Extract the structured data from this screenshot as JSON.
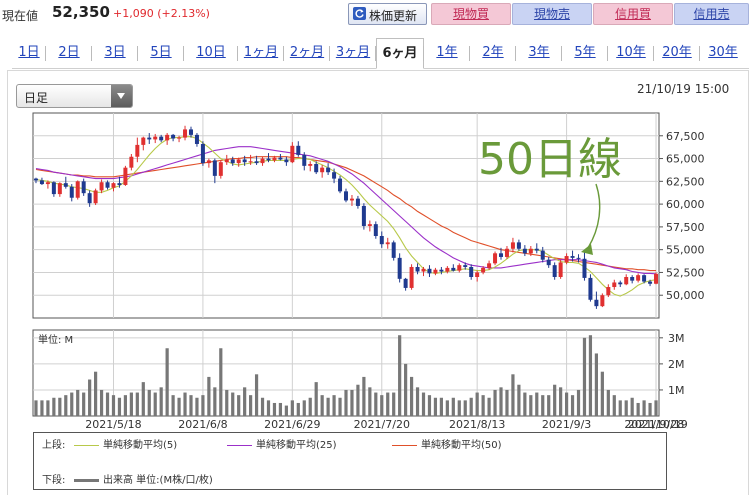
{
  "header": {
    "price_label": "現在値",
    "price_value": "52,350",
    "price_change": "+1,090 (+2.13%)",
    "update_button": "株価更新",
    "buttons": {
      "genbutsu_buy": "現物買",
      "genbutsu_sell": "現物売",
      "shinyo_buy": "信用買",
      "shinyo_sell": "信用売"
    }
  },
  "tabs": [
    "1日",
    "2日",
    "3日",
    "5日",
    "10日",
    "1ヶ月",
    "2ヶ月",
    "3ヶ月",
    "6ヶ月",
    "1年",
    "2年",
    "3年",
    "5年",
    "10年",
    "20年",
    "30年"
  ],
  "active_tab": "6ヶ月",
  "period_select": {
    "value": "日足"
  },
  "timestamp": "21/10/19 15:00",
  "annotation": "50日線",
  "colors": {
    "up": "#e03030",
    "down": "#1f3a8f",
    "ma5": "#b8c94a",
    "ma25": "#9b30c9",
    "ma50": "#e0502a",
    "volume": "#777777",
    "annotation": "#6a9a3a"
  },
  "volume_label": "単位: M",
  "legend": {
    "upper_label": "上段:",
    "ma5": "単純移動平均(5)",
    "ma25": "単純移動平均(25)",
    "ma50": "単純移動平均(50)",
    "lower_label": "下段:",
    "volume": "出来高 単位:(M株/口/枚)"
  },
  "chart_data": {
    "type": "candlestick",
    "x_ticks": [
      "2021/5/18",
      "2021/6/8",
      "2021/6/29",
      "2021/7/20",
      "2021/8/13",
      "2021/9/3",
      "2021/9/28",
      "2021/10/19"
    ],
    "y_ticks": [
      50000,
      52500,
      55000,
      57500,
      60000,
      62500,
      65000,
      67500
    ],
    "y_tick_labels": [
      "50,000",
      "52,500",
      "55,000",
      "57,500",
      "60,000",
      "62,500",
      "65,000",
      "67,500"
    ],
    "ylim": [
      47500,
      70000
    ],
    "volume_ticks": [
      1,
      2,
      3
    ],
    "volume_tick_labels": [
      "1M",
      "2M",
      "3M"
    ],
    "volume_ylim": [
      0,
      3.3
    ],
    "candles": [
      [
        62800,
        62900,
        62300,
        62600,
        0.6
      ],
      [
        62600,
        62900,
        62100,
        62200,
        0.6
      ],
      [
        62200,
        62600,
        61700,
        62400,
        0.6
      ],
      [
        62400,
        62500,
        60800,
        61100,
        0.7
      ],
      [
        61100,
        62400,
        60800,
        62300,
        0.7
      ],
      [
        62300,
        63000,
        61700,
        61900,
        0.8
      ],
      [
        61900,
        62200,
        60300,
        60700,
        0.9
      ],
      [
        60700,
        62600,
        60500,
        62500,
        1.0
      ],
      [
        62500,
        62800,
        60900,
        61200,
        0.9
      ],
      [
        61200,
        61500,
        59700,
        60100,
        1.4
      ],
      [
        60100,
        61700,
        59900,
        61500,
        1.7
      ],
      [
        61500,
        62700,
        61200,
        62400,
        1.0
      ],
      [
        62400,
        62600,
        61600,
        61800,
        0.9
      ],
      [
        61800,
        62400,
        61400,
        62300,
        0.8
      ],
      [
        62300,
        63000,
        61800,
        62100,
        0.7
      ],
      [
        62100,
        64200,
        62000,
        64000,
        0.8
      ],
      [
        64000,
        65500,
        63700,
        65200,
        0.9
      ],
      [
        65200,
        67300,
        64600,
        66500,
        0.9
      ],
      [
        66500,
        67400,
        65900,
        67300,
        1.3
      ],
      [
        67300,
        67800,
        66600,
        67100,
        1.0
      ],
      [
        67100,
        67700,
        66700,
        67400,
        0.9
      ],
      [
        67400,
        67600,
        66800,
        67000,
        1.1
      ],
      [
        67000,
        67800,
        66500,
        67600,
        2.6
      ],
      [
        67600,
        67700,
        66900,
        67200,
        0.8
      ],
      [
        67200,
        67500,
        66800,
        67300,
        0.7
      ],
      [
        67300,
        68600,
        67000,
        68200,
        0.9
      ],
      [
        68200,
        68500,
        67300,
        67600,
        0.8
      ],
      [
        67600,
        67800,
        66300,
        66600,
        0.7
      ],
      [
        66600,
        66900,
        64200,
        64500,
        0.8
      ],
      [
        64500,
        65000,
        64000,
        64800,
        1.5
      ],
      [
        64800,
        65000,
        62300,
        63100,
        1.1
      ],
      [
        63100,
        64800,
        62800,
        64600,
        2.6
      ],
      [
        64600,
        65400,
        64300,
        64900,
        1.0
      ],
      [
        64900,
        65200,
        64200,
        64500,
        0.9
      ],
      [
        64500,
        65100,
        64100,
        64900,
        0.8
      ],
      [
        64900,
        65300,
        64200,
        64600,
        1.1
      ],
      [
        64600,
        65400,
        64300,
        64700,
        0.8
      ],
      [
        64700,
        65300,
        64300,
        64500,
        1.6
      ],
      [
        64500,
        65200,
        64200,
        65000,
        0.7
      ],
      [
        65000,
        65600,
        64600,
        64800,
        0.6
      ],
      [
        64800,
        65300,
        64600,
        65100,
        0.5
      ],
      [
        65100,
        65500,
        64800,
        64900,
        0.5
      ],
      [
        64900,
        65200,
        64200,
        64600,
        0.4
      ],
      [
        64600,
        66800,
        64500,
        66400,
        0.6
      ],
      [
        66400,
        66900,
        65200,
        65400,
        0.5
      ],
      [
        65400,
        65700,
        63700,
        64200,
        0.6
      ],
      [
        64200,
        64700,
        63600,
        64400,
        0.7
      ],
      [
        64400,
        64700,
        63300,
        63500,
        1.3
      ],
      [
        63500,
        64300,
        62900,
        64000,
        0.8
      ],
      [
        64000,
        64500,
        63200,
        63500,
        0.7
      ],
      [
        63500,
        63900,
        62300,
        62800,
        0.8
      ],
      [
        62800,
        63100,
        61200,
        61400,
        0.7
      ],
      [
        61400,
        61700,
        60200,
        60400,
        1.0
      ],
      [
        60400,
        61000,
        59800,
        60600,
        1.0
      ],
      [
        60600,
        60900,
        59500,
        59800,
        1.2
      ],
      [
        59800,
        60100,
        57200,
        57600,
        1.5
      ],
      [
        57600,
        58200,
        57000,
        57800,
        1.1
      ],
      [
        57800,
        58100,
        56200,
        56500,
        0.9
      ],
      [
        56500,
        57000,
        55200,
        55600,
        0.8
      ],
      [
        55600,
        56300,
        55100,
        55800,
        0.9
      ],
      [
        55800,
        56000,
        53800,
        54100,
        0.9
      ],
      [
        54100,
        54600,
        51400,
        51800,
        3.1
      ],
      [
        51800,
        51900,
        50500,
        50800,
        2.0
      ],
      [
        50800,
        53400,
        50600,
        53100,
        1.5
      ],
      [
        53100,
        53500,
        52300,
        52600,
        1.1
      ],
      [
        52600,
        53100,
        52100,
        52900,
        0.9
      ],
      [
        52900,
        53300,
        52000,
        52400,
        0.8
      ],
      [
        52400,
        53000,
        52200,
        52800,
        0.7
      ],
      [
        52800,
        53100,
        52300,
        52600,
        0.7
      ],
      [
        52600,
        53200,
        52400,
        53000,
        0.6
      ],
      [
        53000,
        53400,
        52600,
        52700,
        0.7
      ],
      [
        52700,
        53500,
        52500,
        53300,
        0.6
      ],
      [
        53300,
        53600,
        52800,
        53100,
        0.6
      ],
      [
        53100,
        53400,
        51700,
        52000,
        0.7
      ],
      [
        52000,
        52700,
        51500,
        52500,
        0.9
      ],
      [
        52500,
        53200,
        52300,
        53000,
        0.8
      ],
      [
        53000,
        53800,
        52800,
        53500,
        0.7
      ],
      [
        53500,
        54800,
        53300,
        54600,
        1.0
      ],
      [
        54600,
        55200,
        53900,
        54200,
        1.1
      ],
      [
        54200,
        55400,
        54000,
        55100,
        1.0
      ],
      [
        55100,
        56300,
        54700,
        55800,
        1.6
      ],
      [
        55800,
        56100,
        54900,
        55100,
        1.2
      ],
      [
        55100,
        55500,
        54300,
        54600,
        0.9
      ],
      [
        54600,
        55400,
        54300,
        55100,
        0.8
      ],
      [
        55100,
        55700,
        54600,
        54900,
        0.9
      ],
      [
        54900,
        55300,
        53600,
        53900,
        0.8
      ],
      [
        53900,
        54200,
        53000,
        53300,
        0.8
      ],
      [
        53300,
        53600,
        51700,
        52000,
        1.2
      ],
      [
        52000,
        53900,
        51800,
        53600,
        1.1
      ],
      [
        53600,
        54600,
        53400,
        54300,
        0.9
      ],
      [
        54300,
        54900,
        53700,
        54100,
        0.8
      ],
      [
        54100,
        54500,
        53600,
        54000,
        1.0
      ],
      [
        54000,
        55000,
        51600,
        51900,
        3.0
      ],
      [
        51900,
        52300,
        49300,
        49500,
        3.1
      ],
      [
        49500,
        50400,
        48500,
        48800,
        2.4
      ],
      [
        48800,
        50200,
        48700,
        50000,
        1.7
      ],
      [
        50000,
        51200,
        49800,
        50900,
        1.0
      ],
      [
        50900,
        51700,
        50600,
        51400,
        0.8
      ],
      [
        51400,
        51600,
        50900,
        51200,
        0.6
      ],
      [
        51200,
        52300,
        51100,
        52000,
        0.6
      ],
      [
        52000,
        52200,
        51300,
        51600,
        0.7
      ],
      [
        51600,
        52400,
        51400,
        52200,
        0.5
      ],
      [
        52200,
        52300,
        51300,
        51500,
        0.6
      ],
      [
        51500,
        51700,
        51000,
        51260,
        0.5
      ],
      [
        51260,
        52500,
        51200,
        52350,
        0.6
      ]
    ],
    "ma5": [
      62700,
      62600,
      62500,
      62300,
      62200,
      62100,
      61900,
      61800,
      61700,
      61500,
      61300,
      61300,
      61500,
      61800,
      62000,
      62500,
      63100,
      63800,
      64600,
      65400,
      66100,
      66700,
      67100,
      67300,
      67300,
      67400,
      67400,
      67200,
      66700,
      66200,
      65600,
      65000,
      64700,
      64400,
      64300,
      64400,
      64500,
      64600,
      64700,
      64800,
      64800,
      64800,
      64800,
      64900,
      65000,
      65000,
      64900,
      64600,
      64300,
      64000,
      63600,
      63200,
      62700,
      62100,
      61400,
      60600,
      59900,
      59300,
      58700,
      58100,
      57300,
      56300,
      55200,
      54300,
      53600,
      52900,
      52500,
      52400,
      52500,
      52600,
      52700,
      52800,
      52900,
      52800,
      52700,
      52700,
      52800,
      53100,
      53500,
      54000,
      54500,
      54900,
      55000,
      55000,
      55000,
      54800,
      54400,
      54000,
      53700,
      53600,
      53600,
      53500,
      53100,
      52600,
      51900,
      51200,
      50600,
      50100,
      49900,
      50200,
      50600,
      51100,
      51400,
      51600,
      51700
    ],
    "ma25": [
      63900,
      63800,
      63700,
      63500,
      63400,
      63300,
      63200,
      63100,
      63000,
      62900,
      62800,
      62800,
      62800,
      62800,
      62900,
      63000,
      63100,
      63300,
      63500,
      63700,
      63900,
      64100,
      64300,
      64500,
      64700,
      64900,
      65100,
      65300,
      65500,
      65700,
      65900,
      66000,
      66100,
      66200,
      66300,
      66300,
      66300,
      66200,
      66100,
      66000,
      65900,
      65800,
      65700,
      65600,
      65500,
      65400,
      65300,
      65100,
      64900,
      64700,
      64400,
      64100,
      63700,
      63300,
      62800,
      62300,
      61700,
      61100,
      60500,
      59900,
      59300,
      58700,
      58100,
      57500,
      56900,
      56300,
      55800,
      55300,
      54900,
      54500,
      54100,
      53800,
      53500,
      53300,
      53200,
      53100,
      53000,
      53000,
      53000,
      53100,
      53200,
      53300,
      53400,
      53500,
      53600,
      53700,
      53800,
      53900,
      53900,
      53900,
      53900,
      53900,
      53800,
      53700,
      53600,
      53400,
      53200,
      53000,
      52900,
      52800,
      52600,
      52500,
      52400,
      52400,
      52350
    ],
    "ma50": [
      63800,
      63700,
      63600,
      63500,
      63400,
      63300,
      63200,
      63200,
      63100,
      63100,
      63000,
      63000,
      63000,
      63000,
      63100,
      63200,
      63300,
      63400,
      63500,
      63600,
      63700,
      63800,
      63900,
      64000,
      64100,
      64200,
      64300,
      64400,
      64500,
      64600,
      64700,
      64800,
      64900,
      65000,
      65000,
      65100,
      65100,
      65200,
      65200,
      65200,
      65200,
      65200,
      65200,
      65100,
      65100,
      65000,
      64900,
      64800,
      64700,
      64600,
      64400,
      64200,
      64000,
      63700,
      63400,
      63100,
      62700,
      62300,
      61900,
      61500,
      61000,
      60600,
      60100,
      59700,
      59200,
      58800,
      58400,
      58000,
      57600,
      57300,
      56900,
      56600,
      56300,
      56000,
      55800,
      55600,
      55400,
      55200,
      55000,
      54900,
      54800,
      54700,
      54600,
      54500,
      54400,
      54300,
      54200,
      54100,
      54000,
      53900,
      53800,
      53700,
      53600,
      53500,
      53400,
      53300,
      53200,
      53100,
      53000,
      52900,
      52900,
      52800,
      52800,
      52700,
      52700
    ]
  }
}
